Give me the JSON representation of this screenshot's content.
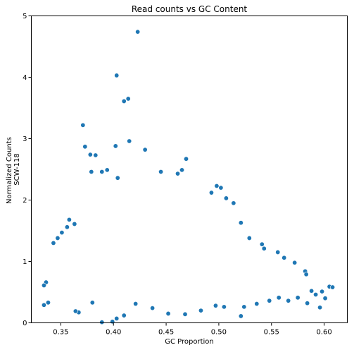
{
  "chart_data": {
    "type": "scatter",
    "title": "Read counts vs GC Content",
    "xlabel": "GC Proportion",
    "ylabel": [
      "Normalized Counts",
      "SCW-118"
    ],
    "xlim": [
      0.322,
      0.622
    ],
    "ylim": [
      0,
      5
    ],
    "x_ticks": [
      0.35,
      0.4,
      0.45,
      0.5,
      0.55,
      0.6
    ],
    "x_tick_labels": [
      "0.35",
      "0.40",
      "0.45",
      "0.50",
      "0.55",
      "0.60"
    ],
    "y_ticks": [
      0,
      1,
      2,
      3,
      4,
      5
    ],
    "y_tick_labels": [
      "0",
      "1",
      "2",
      "3",
      "4",
      "5"
    ],
    "grid": false,
    "legend": "none",
    "marker_color": "#1f77b4",
    "marker_edge_color": "#ffffff",
    "series": [
      {
        "points": [
          [
            0.423,
            4.74
          ],
          [
            0.403,
            4.03
          ],
          [
            0.414,
            3.65
          ],
          [
            0.41,
            3.61
          ],
          [
            0.371,
            3.22
          ],
          [
            0.415,
            2.96
          ],
          [
            0.373,
            2.87
          ],
          [
            0.402,
            2.88
          ],
          [
            0.378,
            2.74
          ],
          [
            0.383,
            2.73
          ],
          [
            0.43,
            2.82
          ],
          [
            0.469,
            2.67
          ],
          [
            0.394,
            2.49
          ],
          [
            0.389,
            2.46
          ],
          [
            0.379,
            2.46
          ],
          [
            0.404,
            2.36
          ],
          [
            0.445,
            2.46
          ],
          [
            0.465,
            2.49
          ],
          [
            0.461,
            2.43
          ],
          [
            0.498,
            2.23
          ],
          [
            0.502,
            2.2
          ],
          [
            0.493,
            2.12
          ],
          [
            0.507,
            2.03
          ],
          [
            0.514,
            1.95
          ],
          [
            0.358,
            1.68
          ],
          [
            0.363,
            1.61
          ],
          [
            0.356,
            1.56
          ],
          [
            0.351,
            1.47
          ],
          [
            0.347,
            1.38
          ],
          [
            0.343,
            1.3
          ],
          [
            0.521,
            1.63
          ],
          [
            0.529,
            1.38
          ],
          [
            0.541,
            1.28
          ],
          [
            0.543,
            1.21
          ],
          [
            0.556,
            1.15
          ],
          [
            0.562,
            1.06
          ],
          [
            0.572,
            0.98
          ],
          [
            0.582,
            0.84
          ],
          [
            0.583,
            0.79
          ],
          [
            0.588,
            0.52
          ],
          [
            0.592,
            0.46
          ],
          [
            0.598,
            0.51
          ],
          [
            0.605,
            0.59
          ],
          [
            0.608,
            0.58
          ],
          [
            0.601,
            0.4
          ],
          [
            0.596,
            0.25
          ],
          [
            0.584,
            0.32
          ],
          [
            0.575,
            0.41
          ],
          [
            0.566,
            0.36
          ],
          [
            0.557,
            0.41
          ],
          [
            0.548,
            0.36
          ],
          [
            0.536,
            0.31
          ],
          [
            0.524,
            0.26
          ],
          [
            0.521,
            0.11
          ],
          [
            0.505,
            0.26
          ],
          [
            0.497,
            0.28
          ],
          [
            0.483,
            0.2
          ],
          [
            0.468,
            0.14
          ],
          [
            0.452,
            0.15
          ],
          [
            0.437,
            0.24
          ],
          [
            0.421,
            0.31
          ],
          [
            0.41,
            0.12
          ],
          [
            0.403,
            0.07
          ],
          [
            0.399,
            0.02
          ],
          [
            0.389,
            0.01
          ],
          [
            0.38,
            0.33
          ],
          [
            0.367,
            0.17
          ],
          [
            0.364,
            0.19
          ],
          [
            0.336,
            0.66
          ],
          [
            0.334,
            0.61
          ],
          [
            0.334,
            0.29
          ],
          [
            0.338,
            0.33
          ]
        ]
      }
    ]
  }
}
